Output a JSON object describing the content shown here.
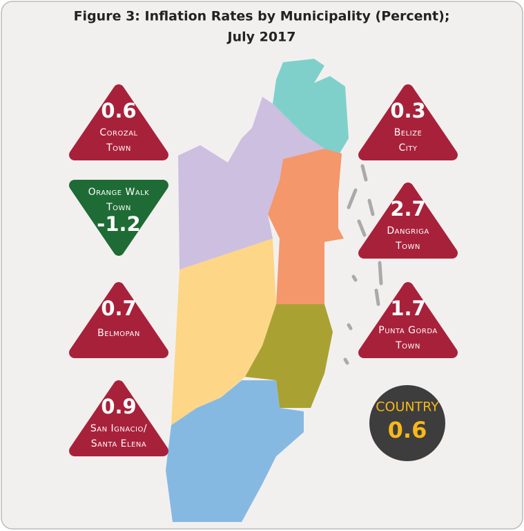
{
  "title": [
    "Figure 3: Inflation Rates by Municipality (Percent);",
    "July 2017"
  ],
  "municipalities": [
    {
      "name": [
        "Corozal",
        "Town"
      ],
      "value": 0.6
    },
    {
      "name": [
        "Belize",
        "City"
      ],
      "value": 0.3
    },
    {
      "name": [
        "Orange Walk",
        "Town"
      ],
      "value": -1.2
    },
    {
      "name": [
        "Dangriga",
        "Town"
      ],
      "value": 2.7
    },
    {
      "name": [
        "Belmopan"
      ],
      "value": 0.7
    },
    {
      "name": [
        "Punta Gorda",
        "Town"
      ],
      "value": 1.7
    },
    {
      "name": [
        "San Ignacio/",
        "Santa Elena"
      ],
      "value": 0.9
    }
  ],
  "country": {
    "label": "COUNTRY",
    "value": 0.6
  }
}
